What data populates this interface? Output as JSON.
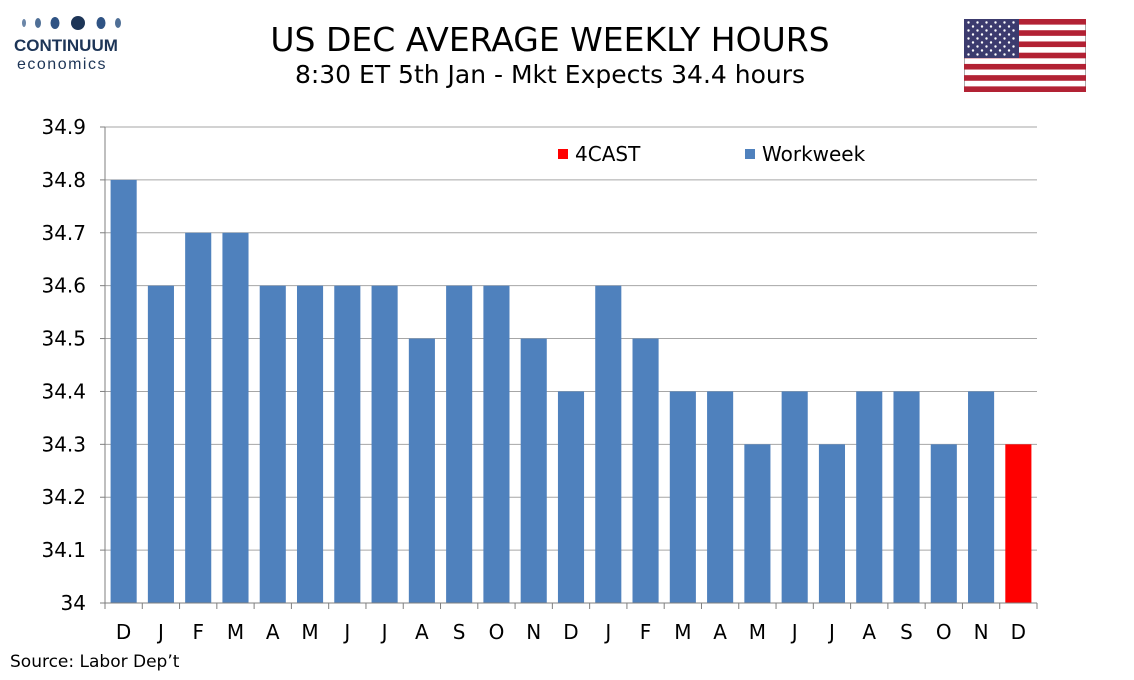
{
  "brand": {
    "name": "CONTINUUM",
    "sub": "economics",
    "logo_icon": "continuum-dots-logo"
  },
  "header": {
    "title": "US DEC AVERAGE WEEKLY HOURS",
    "subtitle": "8:30 ET 5th Jan - Mkt Expects 34.4 hours",
    "flag_icon": "us-flag-icon"
  },
  "source": "Source: Labor Dep’t",
  "colors": {
    "workweek": "#4f81bd",
    "forecast": "#ff0000",
    "grid": "#a6a6a6",
    "axis": "#7f7f7f",
    "brand": "#1d3557"
  },
  "chart_data": {
    "type": "bar",
    "title": "",
    "xlabel": "",
    "ylabel": "",
    "ylim": [
      34,
      34.9
    ],
    "yticks": [
      "34.9",
      "34.8",
      "34.7",
      "34.6",
      "34.5",
      "34.4",
      "34.3",
      "34.2",
      "34.1",
      "34"
    ],
    "categories": [
      "D",
      "J",
      "F",
      "M",
      "A",
      "M",
      "J",
      "J",
      "A",
      "S",
      "O",
      "N",
      "D",
      "J",
      "F",
      "M",
      "A",
      "M",
      "J",
      "J",
      "A",
      "S",
      "O",
      "N",
      "D"
    ],
    "series": [
      {
        "name": "Workweek",
        "color": "#4f81bd",
        "values": [
          34.8,
          34.6,
          34.7,
          34.7,
          34.6,
          34.6,
          34.6,
          34.6,
          34.5,
          34.6,
          34.6,
          34.5,
          34.4,
          34.6,
          34.5,
          34.4,
          34.4,
          34.3,
          34.4,
          34.3,
          34.4,
          34.4,
          34.3,
          34.4,
          null
        ]
      },
      {
        "name": "4CAST",
        "color": "#ff0000",
        "values": [
          null,
          null,
          null,
          null,
          null,
          null,
          null,
          null,
          null,
          null,
          null,
          null,
          null,
          null,
          null,
          null,
          null,
          null,
          null,
          null,
          null,
          null,
          null,
          null,
          34.3
        ]
      }
    ],
    "legend": [
      {
        "label": "4CAST",
        "color": "#ff0000"
      },
      {
        "label": "Workweek",
        "color": "#4f81bd"
      }
    ],
    "legend_position": "top-right",
    "grid": true
  }
}
